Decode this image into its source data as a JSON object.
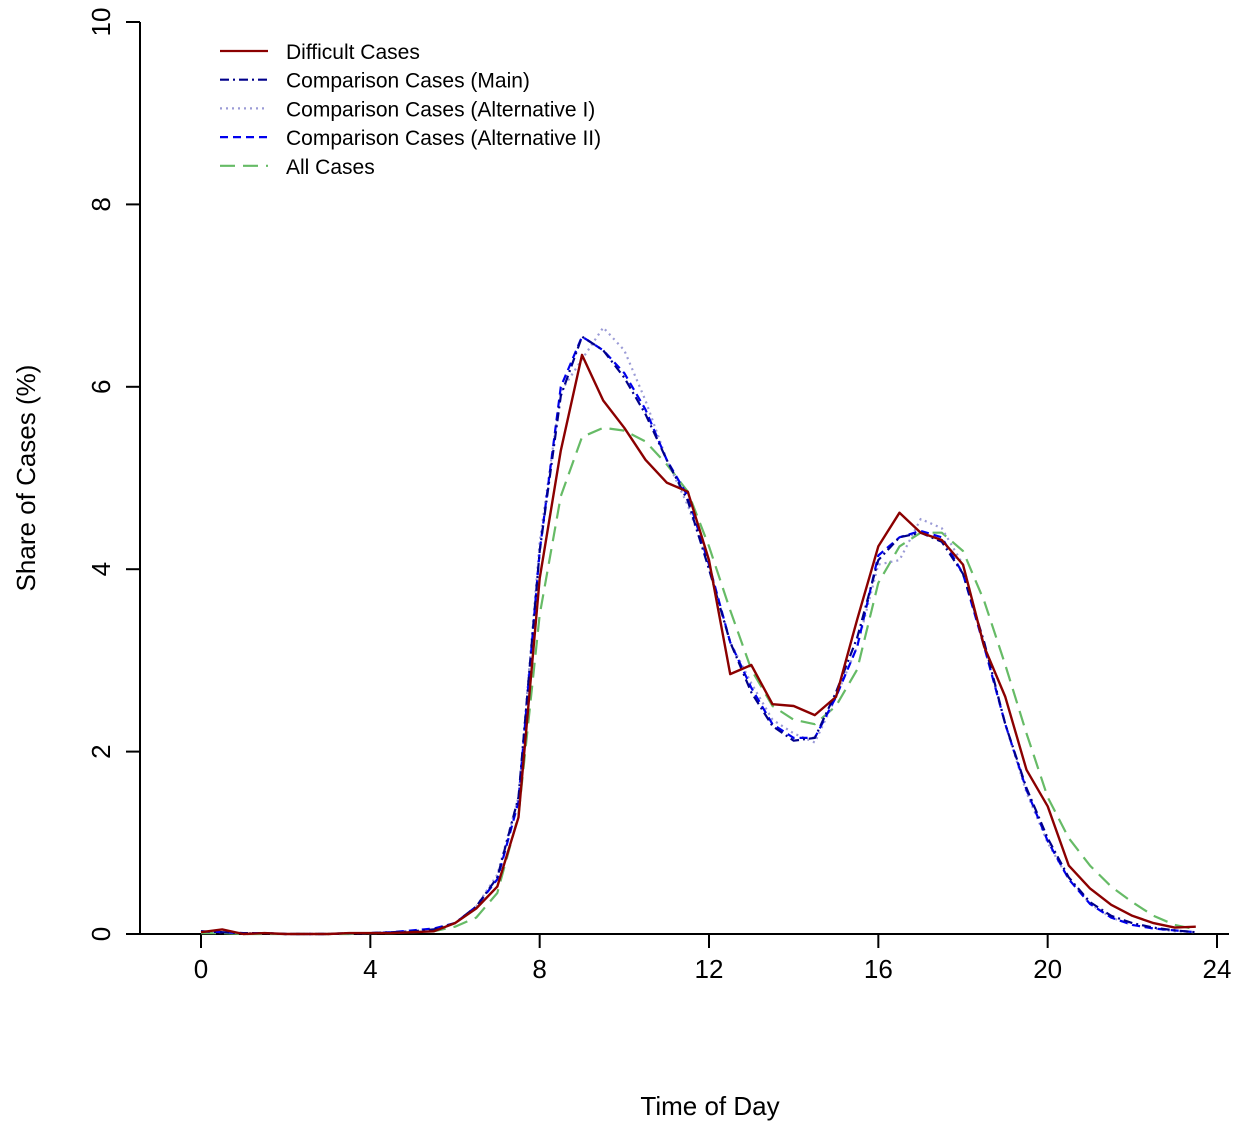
{
  "chart_data": {
    "type": "line",
    "title": "",
    "xlabel": "Time of Day",
    "ylabel": "Share of Cases (%)",
    "xlim": [
      0,
      24
    ],
    "ylim": [
      0,
      10
    ],
    "xticks": [
      0,
      4,
      8,
      12,
      16,
      20,
      24
    ],
    "yticks": [
      0,
      2,
      4,
      6,
      8,
      10
    ],
    "grid": false,
    "legend_position": "top-left",
    "x": [
      0,
      0.5,
      1,
      1.5,
      2,
      2.5,
      3,
      3.5,
      4,
      4.5,
      5,
      5.5,
      6,
      6.5,
      7,
      7.5,
      8,
      8.5,
      9,
      9.5,
      10,
      10.5,
      11,
      11.5,
      12,
      12.5,
      13,
      13.5,
      14,
      14.5,
      15,
      15.5,
      16,
      16.5,
      17,
      17.5,
      18,
      18.5,
      19,
      19.5,
      20,
      20.5,
      21,
      21.5,
      22,
      22.5,
      23,
      23.5
    ],
    "series": [
      {
        "name": "Difficult Cases",
        "color": "#8b0000",
        "style": "solid",
        "values": [
          0.02,
          0.05,
          0.0,
          0.01,
          0.0,
          0.0,
          0.0,
          0.01,
          0.01,
          0.01,
          0.02,
          0.03,
          0.12,
          0.28,
          0.52,
          1.28,
          3.9,
          5.3,
          6.35,
          5.85,
          5.55,
          5.2,
          4.95,
          4.85,
          4.1,
          2.85,
          2.95,
          2.52,
          2.5,
          2.4,
          2.6,
          3.45,
          4.25,
          4.62,
          4.4,
          4.32,
          4.05,
          3.15,
          2.6,
          1.8,
          1.4,
          0.75,
          0.5,
          0.32,
          0.2,
          0.12,
          0.07,
          0.08
        ]
      },
      {
        "name": "Comparison Cases (Main)",
        "color": "#00008b",
        "style": "dashdot",
        "values": [
          0.03,
          0.02,
          0.01,
          0.01,
          0.0,
          0.0,
          0.0,
          0.01,
          0.01,
          0.02,
          0.03,
          0.05,
          0.12,
          0.3,
          0.62,
          1.5,
          4.2,
          5.9,
          6.55,
          6.4,
          6.1,
          5.7,
          5.2,
          4.75,
          4.0,
          3.2,
          2.65,
          2.28,
          2.12,
          2.15,
          2.65,
          3.25,
          4.1,
          4.35,
          4.4,
          4.3,
          3.95,
          3.2,
          2.3,
          1.6,
          1.05,
          0.62,
          0.35,
          0.2,
          0.12,
          0.07,
          0.04,
          0.02
        ]
      },
      {
        "name": "Comparison Cases (Alternative I)",
        "color": "#9b9bd6",
        "style": "dotted",
        "values": [
          0.03,
          0.02,
          0.01,
          0.01,
          0.0,
          0.0,
          0.0,
          0.01,
          0.01,
          0.02,
          0.03,
          0.05,
          0.12,
          0.3,
          0.65,
          1.5,
          4.3,
          5.95,
          6.3,
          6.65,
          6.4,
          5.85,
          5.2,
          4.7,
          4.05,
          3.2,
          2.75,
          2.35,
          2.2,
          2.1,
          2.6,
          3.15,
          4.05,
          4.1,
          4.55,
          4.45,
          4.05,
          3.15,
          2.3,
          1.55,
          1.0,
          0.6,
          0.33,
          0.18,
          0.1,
          0.06,
          0.03,
          0.02
        ]
      },
      {
        "name": "Comparison Cases (Alternative II)",
        "color": "#0000ee",
        "style": "dashed",
        "values": [
          0.03,
          0.02,
          0.01,
          0.01,
          0.0,
          0.0,
          0.0,
          0.01,
          0.01,
          0.02,
          0.04,
          0.06,
          0.12,
          0.3,
          0.6,
          1.45,
          4.2,
          6.0,
          6.55,
          6.4,
          6.15,
          5.75,
          5.2,
          4.8,
          4.05,
          3.2,
          2.7,
          2.3,
          2.15,
          2.15,
          2.6,
          3.15,
          4.15,
          4.35,
          4.42,
          4.35,
          3.95,
          3.15,
          2.3,
          1.58,
          1.02,
          0.6,
          0.33,
          0.18,
          0.1,
          0.06,
          0.04,
          0.02
        ]
      },
      {
        "name": "All Cases",
        "color": "#66bb66",
        "style": "longdash",
        "values": [
          0.01,
          0.01,
          0.0,
          0.0,
          0.0,
          0.0,
          0.0,
          0.0,
          0.01,
          0.01,
          0.02,
          0.03,
          0.08,
          0.18,
          0.45,
          1.3,
          3.5,
          4.8,
          5.45,
          5.55,
          5.52,
          5.4,
          5.15,
          4.85,
          4.25,
          3.55,
          2.9,
          2.5,
          2.35,
          2.3,
          2.5,
          2.9,
          3.85,
          4.25,
          4.4,
          4.4,
          4.2,
          3.65,
          2.95,
          2.2,
          1.5,
          1.05,
          0.75,
          0.52,
          0.35,
          0.2,
          0.1,
          0.05
        ]
      }
    ]
  }
}
